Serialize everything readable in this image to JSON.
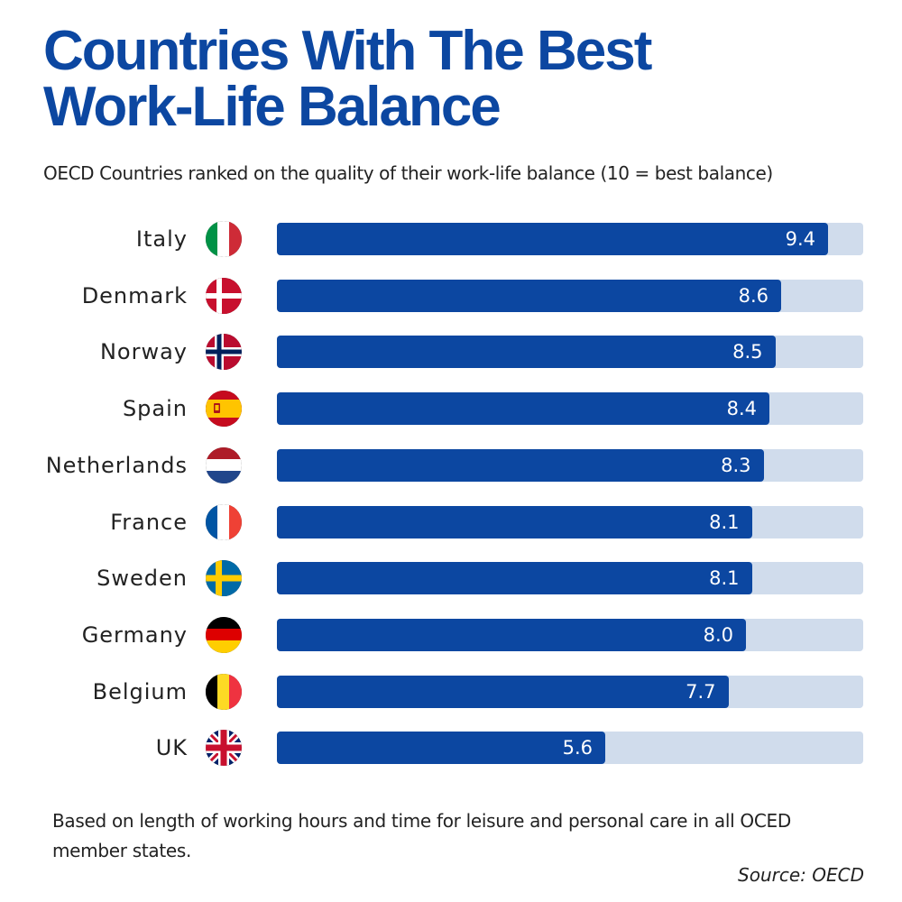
{
  "chart_data": {
    "type": "bar",
    "orientation": "horizontal",
    "title_lines": [
      "Countries With The Best",
      "Work-Life Balance"
    ],
    "subtitle": "OECD Countries ranked on the quality of their work-life balance (10 = best balance)",
    "categories": [
      "Italy",
      "Denmark",
      "Norway",
      "Spain",
      "Netherlands",
      "France",
      "Sweden",
      "Germany",
      "Belgium",
      "UK"
    ],
    "values": [
      9.4,
      8.6,
      8.5,
      8.4,
      8.3,
      8.1,
      8.1,
      8.0,
      7.7,
      5.6
    ],
    "value_labels": [
      "9.4",
      "8.6",
      "8.5",
      "8.4",
      "8.3",
      "8.1",
      "8.1",
      "8.0",
      "7.7",
      "5.6"
    ],
    "flags": [
      "italy-flag-icon",
      "denmark-flag-icon",
      "norway-flag-icon",
      "spain-flag-icon",
      "netherlands-flag-icon",
      "france-flag-icon",
      "sweden-flag-icon",
      "germany-flag-icon",
      "belgium-flag-icon",
      "uk-flag-icon"
    ],
    "xlim": [
      0,
      10
    ],
    "grid": false,
    "colors": {
      "bar": "#0c47a1",
      "track": "#d0dcec",
      "title": "#0c47a1"
    }
  },
  "footnote": "Based on length of working hours and time for leisure and personal care in all OCED member states.",
  "source": "Source: OECD"
}
